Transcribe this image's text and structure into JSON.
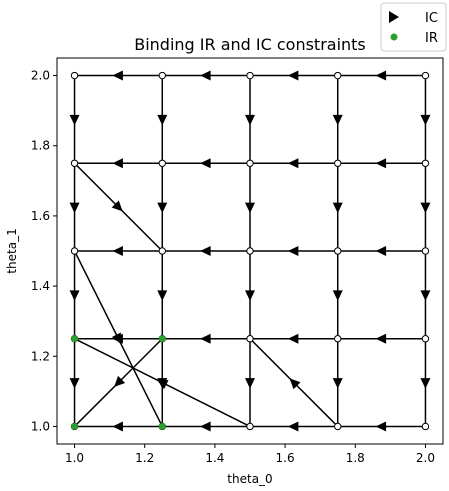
{
  "chart_data": {
    "type": "line",
    "title": "Binding IR and IC constraints",
    "xlabel": "theta_0",
    "ylabel": "theta_1",
    "xlim": [
      0.95,
      2.05
    ],
    "ylim": [
      0.95,
      2.05
    ],
    "xticks": [
      "1.0",
      "1.2",
      "1.4",
      "1.6",
      "1.8",
      "2.0"
    ],
    "xtick_values": [
      1.0,
      1.2,
      1.4,
      1.6,
      1.8,
      2.0
    ],
    "yticks": [
      "1.0",
      "1.2",
      "1.4",
      "1.6",
      "1.8",
      "2.0"
    ],
    "ytick_values": [
      1.0,
      1.2,
      1.4,
      1.6,
      1.8,
      2.0
    ],
    "grid": false,
    "legend": {
      "placement": "top-right outside",
      "entries": [
        {
          "label": "IC",
          "marker": "triangle-right",
          "color": "#000000"
        },
        {
          "label": "IR",
          "marker": "circle",
          "color": "#2ca02c"
        }
      ]
    },
    "nodes": {
      "x": [
        1.0,
        1.25,
        1.5,
        1.75,
        2.0
      ],
      "y": [
        1.0,
        1.25,
        1.5,
        1.75,
        2.0
      ],
      "fill": "#ffffff",
      "edge": "#000000"
    },
    "ir_points": [
      [
        1.0,
        1.25
      ],
      [
        1.25,
        1.25
      ],
      [
        1.0,
        1.0
      ],
      [
        1.25,
        1.0
      ]
    ],
    "ir_color": "#2ca02c",
    "ic_edges": [
      [
        [
          1.25,
          2.0
        ],
        [
          1.0,
          2.0
        ]
      ],
      [
        [
          1.5,
          2.0
        ],
        [
          1.25,
          2.0
        ]
      ],
      [
        [
          1.75,
          2.0
        ],
        [
          1.5,
          2.0
        ]
      ],
      [
        [
          2.0,
          2.0
        ],
        [
          1.75,
          2.0
        ]
      ],
      [
        [
          1.25,
          1.75
        ],
        [
          1.0,
          1.75
        ]
      ],
      [
        [
          1.5,
          1.75
        ],
        [
          1.25,
          1.75
        ]
      ],
      [
        [
          1.75,
          1.75
        ],
        [
          1.5,
          1.75
        ]
      ],
      [
        [
          2.0,
          1.75
        ],
        [
          1.75,
          1.75
        ]
      ],
      [
        [
          1.25,
          1.5
        ],
        [
          1.0,
          1.5
        ]
      ],
      [
        [
          1.5,
          1.5
        ],
        [
          1.25,
          1.5
        ]
      ],
      [
        [
          1.75,
          1.5
        ],
        [
          1.5,
          1.5
        ]
      ],
      [
        [
          2.0,
          1.5
        ],
        [
          1.75,
          1.5
        ]
      ],
      [
        [
          1.25,
          1.25
        ],
        [
          1.0,
          1.25
        ]
      ],
      [
        [
          1.5,
          1.25
        ],
        [
          1.25,
          1.25
        ]
      ],
      [
        [
          1.75,
          1.25
        ],
        [
          1.5,
          1.25
        ]
      ],
      [
        [
          2.0,
          1.25
        ],
        [
          1.75,
          1.25
        ]
      ],
      [
        [
          1.25,
          1.0
        ],
        [
          1.0,
          1.0
        ]
      ],
      [
        [
          1.5,
          1.0
        ],
        [
          1.25,
          1.0
        ]
      ],
      [
        [
          1.75,
          1.0
        ],
        [
          1.5,
          1.0
        ]
      ],
      [
        [
          2.0,
          1.0
        ],
        [
          1.75,
          1.0
        ]
      ],
      [
        [
          1.0,
          2.0
        ],
        [
          1.0,
          1.75
        ]
      ],
      [
        [
          1.0,
          1.75
        ],
        [
          1.0,
          1.5
        ]
      ],
      [
        [
          1.0,
          1.5
        ],
        [
          1.0,
          1.25
        ]
      ],
      [
        [
          1.0,
          1.25
        ],
        [
          1.0,
          1.0
        ]
      ],
      [
        [
          1.25,
          2.0
        ],
        [
          1.25,
          1.75
        ]
      ],
      [
        [
          1.25,
          1.75
        ],
        [
          1.25,
          1.5
        ]
      ],
      [
        [
          1.25,
          1.5
        ],
        [
          1.25,
          1.25
        ]
      ],
      [
        [
          1.25,
          1.25
        ],
        [
          1.25,
          1.0
        ]
      ],
      [
        [
          1.5,
          2.0
        ],
        [
          1.5,
          1.75
        ]
      ],
      [
        [
          1.5,
          1.75
        ],
        [
          1.5,
          1.5
        ]
      ],
      [
        [
          1.5,
          1.5
        ],
        [
          1.5,
          1.25
        ]
      ],
      [
        [
          1.5,
          1.25
        ],
        [
          1.5,
          1.0
        ]
      ],
      [
        [
          1.75,
          2.0
        ],
        [
          1.75,
          1.75
        ]
      ],
      [
        [
          1.75,
          1.75
        ],
        [
          1.75,
          1.5
        ]
      ],
      [
        [
          1.75,
          1.5
        ],
        [
          1.75,
          1.25
        ]
      ],
      [
        [
          1.75,
          1.25
        ],
        [
          1.75,
          1.0
        ]
      ],
      [
        [
          2.0,
          2.0
        ],
        [
          2.0,
          1.75
        ]
      ],
      [
        [
          2.0,
          1.75
        ],
        [
          2.0,
          1.5
        ]
      ],
      [
        [
          2.0,
          1.5
        ],
        [
          2.0,
          1.25
        ]
      ],
      [
        [
          2.0,
          1.25
        ],
        [
          2.0,
          1.0
        ]
      ],
      [
        [
          1.0,
          1.75
        ],
        [
          1.25,
          1.5
        ]
      ],
      [
        [
          1.0,
          1.5
        ],
        [
          1.25,
          1.0
        ]
      ],
      [
        [
          1.25,
          1.25
        ],
        [
          1.0,
          1.0
        ]
      ],
      [
        [
          1.5,
          1.0
        ],
        [
          1.0,
          1.25
        ]
      ],
      [
        [
          1.75,
          1.0
        ],
        [
          1.5,
          1.25
        ]
      ]
    ]
  }
}
